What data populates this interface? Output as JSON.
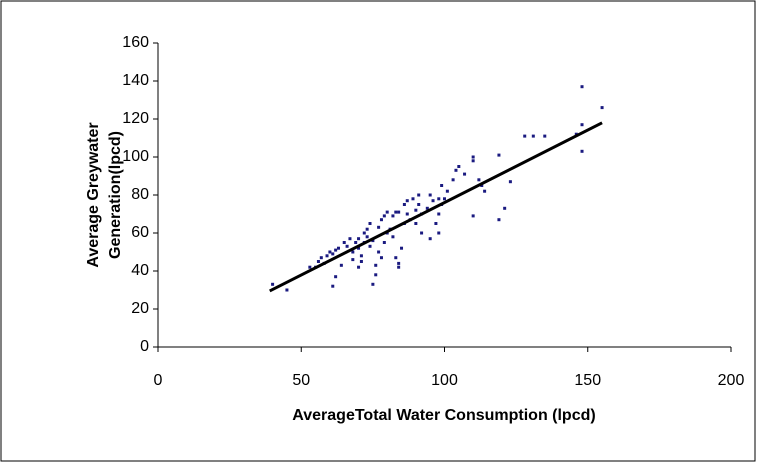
{
  "chart_data": {
    "type": "scatter",
    "x_label": "AverageTotal Water Consumption (lpcd)",
    "y_label": [
      "Average Greywater",
      "Generation(lpcd)"
    ],
    "color": "#1a1a80",
    "x": [
      40,
      45,
      53,
      55,
      56,
      57,
      58,
      59,
      60,
      61,
      62,
      63,
      61,
      62,
      64,
      65,
      66,
      67,
      68,
      68,
      69,
      70,
      70,
      70,
      71,
      71,
      72,
      72,
      73,
      73,
      74,
      74,
      75,
      75,
      76,
      76,
      77,
      77,
      78,
      78,
      79,
      79,
      80,
      80,
      81,
      82,
      82,
      83,
      83,
      84,
      84,
      84,
      85,
      86,
      86,
      87,
      87,
      88,
      89,
      90,
      90,
      91,
      91,
      92,
      92,
      94,
      95,
      95,
      96,
      97,
      98,
      98,
      98,
      99,
      99,
      100,
      101,
      103,
      104,
      105,
      107,
      110,
      110,
      110,
      112,
      113,
      114,
      119,
      119,
      121,
      123,
      128,
      131,
      135,
      146,
      148,
      148,
      148,
      155
    ],
    "values": [
      33,
      30,
      42,
      42,
      45,
      47,
      44,
      48,
      50,
      49,
      51,
      52,
      32,
      37,
      43,
      55,
      53,
      57,
      50,
      46,
      55,
      57,
      52,
      42,
      48,
      45,
      60,
      55,
      62,
      58,
      65,
      53,
      56,
      33,
      38,
      43,
      63,
      50,
      67,
      47,
      69,
      55,
      71,
      60,
      62,
      69,
      58,
      71,
      47,
      71,
      44,
      42,
      52,
      75,
      65,
      77,
      70,
      67,
      78,
      72,
      65,
      80,
      75,
      70,
      60,
      73,
      80,
      57,
      77,
      65,
      78,
      60,
      70,
      85,
      75,
      78,
      82,
      88,
      93,
      95,
      91,
      100,
      98,
      69,
      88,
      85,
      82,
      101,
      67,
      73,
      87,
      111,
      111,
      111,
      112,
      137,
      117,
      103,
      126
    ],
    "trendline": {
      "x": [
        39,
        155
      ],
      "values": [
        29.5,
        118
      ],
      "color": "#000000"
    },
    "xlim": [
      0,
      200
    ],
    "xticks": [
      0,
      50,
      100,
      150,
      200
    ],
    "ylim": [
      0,
      160
    ],
    "yticks": [
      0,
      20,
      40,
      60,
      80,
      100,
      120,
      140,
      160
    ],
    "grid": false
  }
}
